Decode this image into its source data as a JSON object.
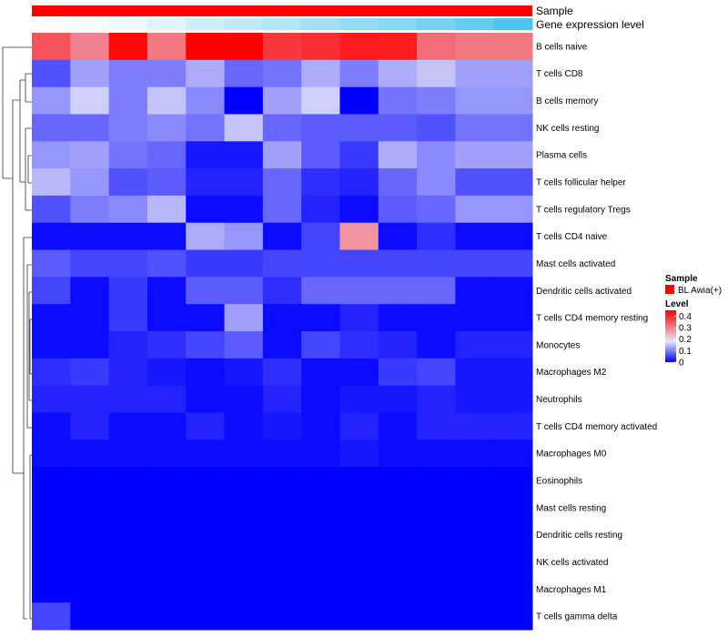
{
  "chart_data": {
    "type": "heatmap",
    "title": "",
    "annotations": {
      "sample_label": "Sample",
      "gene_label": "Gene expression level",
      "sample_color": "#FF0000",
      "gene_values": [
        0.0,
        0.05,
        0.1,
        0.18,
        0.28,
        0.36,
        0.44,
        0.52,
        0.6,
        0.68,
        0.76,
        0.86,
        1.0
      ],
      "gene_color_low": "#FFFFFF",
      "gene_color_high": "#4FC3F0"
    },
    "rows": [
      "B cells naive",
      "T cells CD8",
      "B cells memory",
      "NK cells resting",
      "Plasma cells",
      "T cells follicular helper",
      "T cells regulatory  Tregs",
      "T cells CD4 naive",
      "Mast cells activated",
      "Dendritic cells activated",
      "T cells CD4 memory resting",
      "Monocytes",
      "Macrophages M2",
      "Neutrophils",
      "T cells CD4 memory activated",
      "Macrophages M0",
      "Eosinophils",
      "Mast cells resting",
      "Dendritic cells resting",
      "NK cells activated",
      "Macrophages M1",
      "T cells gamma delta"
    ],
    "n_columns": 13,
    "values": [
      [
        0.36,
        0.31,
        0.44,
        0.32,
        0.45,
        0.45,
        0.39,
        0.4,
        0.42,
        0.42,
        0.33,
        0.32,
        0.32
      ],
      [
        0.07,
        0.14,
        0.11,
        0.11,
        0.15,
        0.09,
        0.1,
        0.15,
        0.11,
        0.15,
        0.17,
        0.14,
        0.14
      ],
      [
        0.13,
        0.18,
        0.11,
        0.17,
        0.12,
        0.0,
        0.14,
        0.18,
        0.0,
        0.1,
        0.11,
        0.13,
        0.13
      ],
      [
        0.09,
        0.09,
        0.11,
        0.12,
        0.1,
        0.17,
        0.09,
        0.08,
        0.08,
        0.08,
        0.07,
        0.1,
        0.1
      ],
      [
        0.13,
        0.14,
        0.1,
        0.09,
        0.02,
        0.02,
        0.14,
        0.08,
        0.05,
        0.15,
        0.12,
        0.14,
        0.14
      ],
      [
        0.16,
        0.13,
        0.07,
        0.08,
        0.03,
        0.03,
        0.09,
        0.04,
        0.03,
        0.09,
        0.12,
        0.07,
        0.07
      ],
      [
        0.07,
        0.11,
        0.12,
        0.16,
        0.01,
        0.01,
        0.09,
        0.03,
        0.01,
        0.08,
        0.09,
        0.13,
        0.13
      ],
      [
        0.01,
        0.01,
        0.01,
        0.01,
        0.15,
        0.13,
        0.01,
        0.06,
        0.29,
        0.01,
        0.04,
        0.01,
        0.01
      ],
      [
        0.08,
        0.06,
        0.06,
        0.07,
        0.05,
        0.05,
        0.06,
        0.06,
        0.06,
        0.06,
        0.06,
        0.06,
        0.06
      ],
      [
        0.06,
        0.01,
        0.05,
        0.01,
        0.08,
        0.08,
        0.04,
        0.09,
        0.09,
        0.09,
        0.09,
        0.01,
        0.01
      ],
      [
        0.01,
        0.01,
        0.05,
        0.01,
        0.01,
        0.14,
        0.01,
        0.01,
        0.03,
        0.01,
        0.01,
        0.01,
        0.01
      ],
      [
        0.01,
        0.01,
        0.03,
        0.04,
        0.06,
        0.08,
        0.01,
        0.06,
        0.04,
        0.03,
        0.01,
        0.03,
        0.03
      ],
      [
        0.04,
        0.05,
        0.03,
        0.02,
        0.01,
        0.02,
        0.04,
        0.01,
        0.01,
        0.05,
        0.06,
        0.02,
        0.02
      ],
      [
        0.03,
        0.03,
        0.03,
        0.03,
        0.01,
        0.01,
        0.03,
        0.01,
        0.02,
        0.02,
        0.03,
        0.02,
        0.02
      ],
      [
        0.01,
        0.03,
        0.01,
        0.01,
        0.03,
        0.01,
        0.02,
        0.01,
        0.03,
        0.01,
        0.03,
        0.03,
        0.03
      ],
      [
        0.01,
        0.01,
        0.01,
        0.01,
        0.01,
        0.01,
        0.01,
        0.01,
        0.02,
        0.01,
        0.01,
        0.01,
        0.01
      ],
      [
        0.0,
        0.0,
        0.0,
        0.0,
        0.0,
        0.0,
        0.0,
        0.0,
        0.0,
        0.0,
        0.0,
        0.0,
        0.0
      ],
      [
        0.0,
        0.0,
        0.0,
        0.0,
        0.0,
        0.0,
        0.0,
        0.0,
        0.0,
        0.0,
        0.0,
        0.0,
        0.0
      ],
      [
        0.0,
        0.0,
        0.0,
        0.0,
        0.0,
        0.0,
        0.0,
        0.0,
        0.0,
        0.0,
        0.0,
        0.0,
        0.0
      ],
      [
        0.0,
        0.0,
        0.0,
        0.0,
        0.0,
        0.0,
        0.0,
        0.0,
        0.0,
        0.0,
        0.0,
        0.0,
        0.0
      ],
      [
        0.0,
        0.0,
        0.0,
        0.0,
        0.0,
        0.0,
        0.0,
        0.0,
        0.0,
        0.0,
        0.0,
        0.0,
        0.0
      ],
      [
        0.06,
        0.0,
        0.0,
        0.0,
        0.0,
        0.0,
        0.0,
        0.0,
        0.0,
        0.0,
        0.0,
        0.0,
        0.0
      ]
    ],
    "color_scale": {
      "low": "#0000FF",
      "mid": "#E6E6FA",
      "high": "#FF0000",
      "mid_value": 0.2,
      "max_value": 0.45
    },
    "legend": {
      "sample_title": "Sample",
      "sample_entry": "BL Awia(+)",
      "level_title": "Level",
      "level_ticks": [
        "0.4",
        "0.3",
        "0.2",
        "0.1",
        "0"
      ],
      "level_tick_values": [
        0.4,
        0.3,
        0.2,
        0.1,
        0
      ]
    },
    "dendrogram": "row clustering"
  }
}
